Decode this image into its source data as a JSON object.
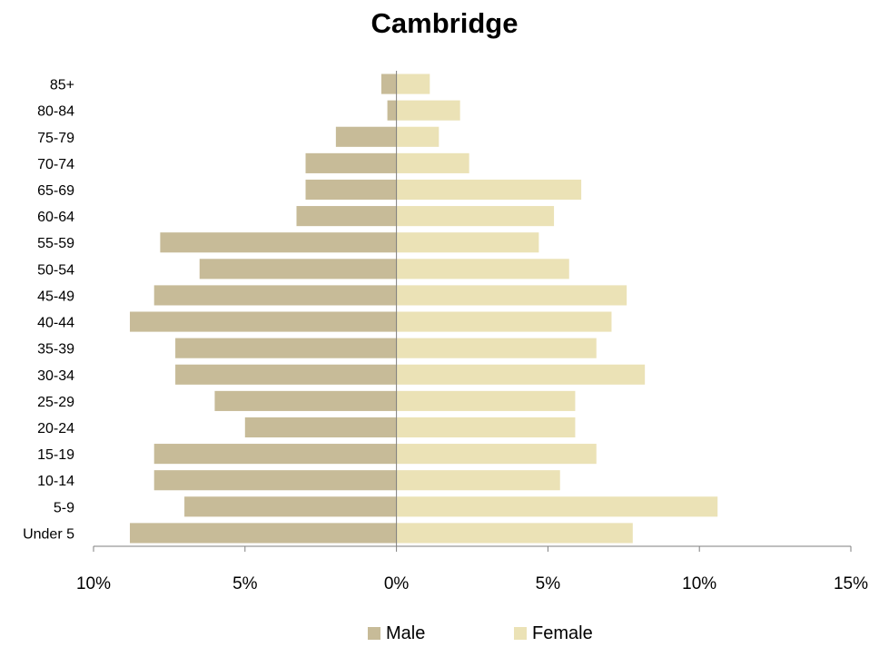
{
  "chart_data": {
    "type": "bar",
    "orientation": "horizontal",
    "title": "Cambridge",
    "categories": [
      "Under 5",
      "5-9",
      "10-14",
      "15-19",
      "20-24",
      "25-29",
      "30-34",
      "35-39",
      "40-44",
      "45-49",
      "50-54",
      "55-59",
      "60-64",
      "65-69",
      "70-74",
      "75-79",
      "80-84",
      "85+"
    ],
    "series": [
      {
        "name": "Male",
        "color": "#c7bb98",
        "values": [
          8.8,
          7.0,
          8.0,
          8.0,
          5.0,
          6.0,
          7.3,
          7.3,
          8.8,
          8.0,
          6.5,
          7.8,
          3.3,
          3.0,
          3.0,
          2.0,
          0.3,
          0.5
        ]
      },
      {
        "name": "Female",
        "color": "#ebe2b6",
        "values": [
          7.8,
          10.6,
          5.4,
          6.6,
          5.9,
          5.9,
          8.2,
          6.6,
          7.1,
          7.6,
          5.7,
          4.7,
          5.2,
          6.1,
          2.4,
          1.4,
          2.1,
          1.1
        ]
      }
    ],
    "x_ticks": [
      "10%",
      "5%",
      "0%",
      "5%",
      "10%",
      "15%"
    ],
    "xlim": [
      -10,
      15
    ],
    "grid": false,
    "legend_position": "bottom",
    "xlabel": "",
    "ylabel": ""
  }
}
